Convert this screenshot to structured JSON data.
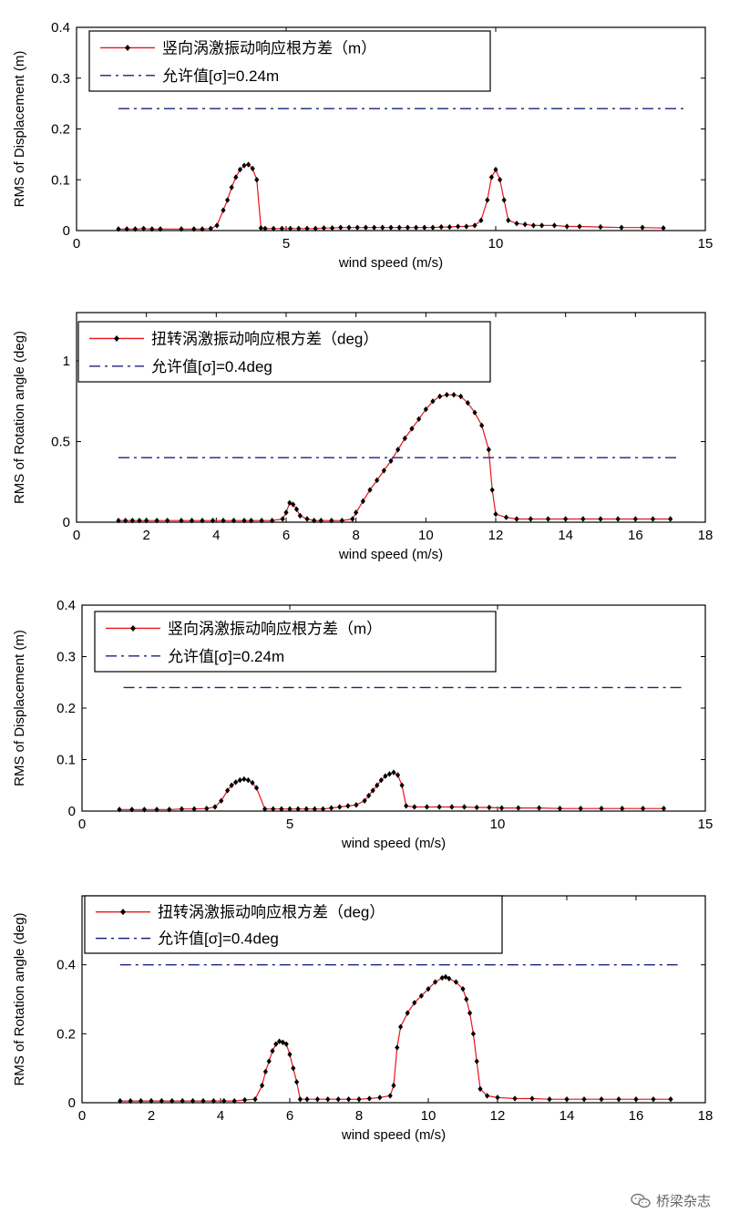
{
  "chart_data": [
    {
      "type": "line",
      "xlabel": "wind speed (m/s)",
      "ylabel": "RMS of Displacement (m)",
      "xlim": [
        0,
        15
      ],
      "ylim": [
        0,
        0.4
      ],
      "xticks": [
        "0",
        "5",
        "10",
        "15"
      ],
      "yticks": [
        "0",
        "0.1",
        "0.2",
        "0.3",
        "0.4"
      ],
      "legend": {
        "position": "top-left",
        "entries": [
          "竖向涡激振动响应根方差（m）",
          "允许值[σ]=0.24m"
        ]
      },
      "series": [
        {
          "name": "竖向涡激振动响应根方差（m）",
          "color": "#e8141c",
          "marker": "diamond",
          "x": [
            1.0,
            1.2,
            1.4,
            1.6,
            1.8,
            2.0,
            2.5,
            2.8,
            3.0,
            3.2,
            3.35,
            3.5,
            3.6,
            3.7,
            3.8,
            3.9,
            4.0,
            4.1,
            4.2,
            4.3,
            4.4,
            4.5,
            4.7,
            4.9,
            5.1,
            5.3,
            5.5,
            5.7,
            5.9,
            6.1,
            6.3,
            6.5,
            6.7,
            6.9,
            7.1,
            7.3,
            7.5,
            7.7,
            7.9,
            8.1,
            8.3,
            8.5,
            8.7,
            8.9,
            9.1,
            9.3,
            9.5,
            9.65,
            9.8,
            9.9,
            10.0,
            10.1,
            10.2,
            10.3,
            10.5,
            10.7,
            10.9,
            11.1,
            11.4,
            11.7,
            12.0,
            12.5,
            13.0,
            13.5,
            14.0
          ],
          "y": [
            0.003,
            0.003,
            0.003,
            0.004,
            0.003,
            0.003,
            0.003,
            0.003,
            0.003,
            0.004,
            0.01,
            0.04,
            0.06,
            0.085,
            0.105,
            0.12,
            0.128,
            0.13,
            0.122,
            0.1,
            0.005,
            0.004,
            0.004,
            0.004,
            0.004,
            0.004,
            0.004,
            0.004,
            0.005,
            0.005,
            0.006,
            0.006,
            0.006,
            0.006,
            0.006,
            0.006,
            0.006,
            0.006,
            0.006,
            0.006,
            0.006,
            0.006,
            0.007,
            0.007,
            0.008,
            0.008,
            0.01,
            0.02,
            0.06,
            0.105,
            0.12,
            0.1,
            0.06,
            0.02,
            0.014,
            0.012,
            0.01,
            0.01,
            0.01,
            0.008,
            0.008,
            0.007,
            0.006,
            0.006,
            0.005
          ]
        },
        {
          "name": "允许值[σ]=0.24m",
          "color": "#1a237e",
          "dash": "dashdot",
          "x": [
            1,
            14.5
          ],
          "y": [
            0.24,
            0.24
          ]
        }
      ]
    },
    {
      "type": "line",
      "xlabel": "wind speed (m/s)",
      "ylabel": "RMS of Rotation angle (deg)",
      "xlim": [
        0,
        18
      ],
      "ylim": [
        0,
        1.3
      ],
      "xticks": [
        "0",
        "2",
        "4",
        "6",
        "8",
        "10",
        "12",
        "14",
        "16",
        "18"
      ],
      "yticks": [
        "0",
        "0.5",
        "1"
      ],
      "legend": {
        "position": "top-left",
        "entries": [
          "扭转涡激振动响应根方差（deg）",
          "允许值[σ]=0.4deg"
        ]
      },
      "series": [
        {
          "name": "扭转涡激振动响应根方差（deg）",
          "color": "#e8141c",
          "marker": "diamond",
          "x": [
            1.2,
            1.4,
            1.6,
            1.8,
            2.0,
            2.3,
            2.6,
            3.0,
            3.3,
            3.6,
            3.9,
            4.2,
            4.5,
            4.8,
            5.0,
            5.3,
            5.6,
            5.9,
            6.0,
            6.1,
            6.2,
            6.3,
            6.4,
            6.6,
            6.8,
            7.0,
            7.3,
            7.6,
            7.9,
            8.0,
            8.2,
            8.4,
            8.6,
            8.8,
            9.0,
            9.2,
            9.4,
            9.6,
            9.8,
            10.0,
            10.2,
            10.4,
            10.6,
            10.8,
            11.0,
            11.2,
            11.4,
            11.6,
            11.8,
            11.9,
            12.0,
            12.3,
            12.6,
            13.0,
            13.5,
            14.0,
            14.5,
            15.0,
            15.5,
            16.0,
            16.5,
            17.0
          ],
          "y": [
            0.01,
            0.01,
            0.01,
            0.01,
            0.01,
            0.01,
            0.01,
            0.01,
            0.01,
            0.01,
            0.01,
            0.01,
            0.01,
            0.01,
            0.01,
            0.01,
            0.01,
            0.02,
            0.06,
            0.12,
            0.11,
            0.08,
            0.04,
            0.02,
            0.01,
            0.01,
            0.01,
            0.01,
            0.02,
            0.06,
            0.13,
            0.2,
            0.26,
            0.32,
            0.38,
            0.45,
            0.52,
            0.58,
            0.64,
            0.7,
            0.75,
            0.78,
            0.79,
            0.79,
            0.78,
            0.74,
            0.68,
            0.6,
            0.45,
            0.2,
            0.05,
            0.03,
            0.02,
            0.02,
            0.02,
            0.02,
            0.02,
            0.02,
            0.02,
            0.02,
            0.02,
            0.02
          ]
        },
        {
          "name": "允许值[σ]=0.4deg",
          "color": "#1a237e",
          "dash": "dashdot",
          "x": [
            1.2,
            17.2
          ],
          "y": [
            0.4,
            0.4
          ]
        }
      ]
    },
    {
      "type": "line",
      "xlabel": "wind speed (m/s)",
      "ylabel": "RMS of Displacement (m)",
      "xlim": [
        0,
        15
      ],
      "ylim": [
        0,
        0.4
      ],
      "xticks": [
        "0",
        "5",
        "10",
        "15"
      ],
      "yticks": [
        "0",
        "0.1",
        "0.2",
        "0.3",
        "0.4"
      ],
      "legend": {
        "position": "top-left",
        "entries": [
          "竖向涡激振动响应根方差（m）",
          "允许值[σ]=0.24m"
        ]
      },
      "series": [
        {
          "name": "竖向涡激振动响应根方差（m）",
          "color": "#e8141c",
          "marker": "diamond",
          "x": [
            0.9,
            1.2,
            1.5,
            1.8,
            2.1,
            2.4,
            2.7,
            3.0,
            3.2,
            3.35,
            3.5,
            3.6,
            3.7,
            3.8,
            3.9,
            4.0,
            4.1,
            4.2,
            4.4,
            4.6,
            4.8,
            5.0,
            5.2,
            5.4,
            5.6,
            5.8,
            6.0,
            6.2,
            6.4,
            6.6,
            6.8,
            6.9,
            7.0,
            7.1,
            7.2,
            7.3,
            7.4,
            7.5,
            7.6,
            7.7,
            7.8,
            8.0,
            8.3,
            8.6,
            8.9,
            9.2,
            9.5,
            9.8,
            10.1,
            10.5,
            11.0,
            11.5,
            12.0,
            12.5,
            13.0,
            13.5,
            14.0
          ],
          "y": [
            0.003,
            0.003,
            0.003,
            0.003,
            0.003,
            0.004,
            0.004,
            0.005,
            0.008,
            0.02,
            0.04,
            0.05,
            0.056,
            0.06,
            0.062,
            0.06,
            0.055,
            0.045,
            0.004,
            0.004,
            0.004,
            0.004,
            0.004,
            0.004,
            0.004,
            0.004,
            0.006,
            0.008,
            0.01,
            0.012,
            0.02,
            0.03,
            0.04,
            0.05,
            0.06,
            0.068,
            0.072,
            0.075,
            0.07,
            0.05,
            0.01,
            0.008,
            0.008,
            0.008,
            0.008,
            0.008,
            0.007,
            0.007,
            0.006,
            0.006,
            0.006,
            0.005,
            0.005,
            0.005,
            0.005,
            0.005,
            0.005
          ]
        },
        {
          "name": "允许值[σ]=0.24m",
          "color": "#1a237e",
          "dash": "dashdot",
          "x": [
            1,
            14.5
          ],
          "y": [
            0.24,
            0.24
          ]
        }
      ]
    },
    {
      "type": "line",
      "xlabel": "wind speed (m/s)",
      "ylabel": "RMS of Rotation angle (deg)",
      "xlim": [
        0,
        18
      ],
      "ylim": [
        0,
        0.6
      ],
      "xticks": [
        "0",
        "2",
        "4",
        "6",
        "8",
        "10",
        "12",
        "14",
        "16",
        "18"
      ],
      "yticks": [
        "0",
        "0.2",
        "0.4"
      ],
      "legend": {
        "position": "top-left",
        "entries": [
          "扭转涡激振动响应根方差（deg）",
          "允许值[σ]=0.4deg"
        ]
      },
      "series": [
        {
          "name": "扭转涡激振动响应根方差（deg）",
          "color": "#e8141c",
          "marker": "diamond",
          "x": [
            1.1,
            1.4,
            1.7,
            2.0,
            2.3,
            2.6,
            2.9,
            3.2,
            3.5,
            3.8,
            4.1,
            4.4,
            4.7,
            5.0,
            5.2,
            5.3,
            5.4,
            5.5,
            5.6,
            5.7,
            5.8,
            5.9,
            6.0,
            6.1,
            6.2,
            6.3,
            6.5,
            6.8,
            7.1,
            7.4,
            7.7,
            8.0,
            8.3,
            8.6,
            8.9,
            9.0,
            9.1,
            9.2,
            9.4,
            9.6,
            9.8,
            10.0,
            10.2,
            10.4,
            10.5,
            10.6,
            10.8,
            11.0,
            11.1,
            11.2,
            11.3,
            11.4,
            11.5,
            11.7,
            12.0,
            12.5,
            13.0,
            13.5,
            14.0,
            14.5,
            15.0,
            15.5,
            16.0,
            16.5,
            17.0
          ],
          "y": [
            0.005,
            0.005,
            0.005,
            0.005,
            0.005,
            0.005,
            0.005,
            0.005,
            0.005,
            0.005,
            0.005,
            0.005,
            0.008,
            0.01,
            0.05,
            0.09,
            0.12,
            0.15,
            0.17,
            0.178,
            0.175,
            0.17,
            0.14,
            0.1,
            0.06,
            0.01,
            0.01,
            0.01,
            0.01,
            0.01,
            0.01,
            0.01,
            0.012,
            0.015,
            0.02,
            0.05,
            0.16,
            0.22,
            0.26,
            0.29,
            0.31,
            0.33,
            0.35,
            0.362,
            0.365,
            0.36,
            0.35,
            0.33,
            0.3,
            0.26,
            0.2,
            0.12,
            0.04,
            0.02,
            0.015,
            0.012,
            0.012,
            0.01,
            0.01,
            0.01,
            0.01,
            0.01,
            0.01,
            0.01,
            0.01
          ]
        },
        {
          "name": "允许值[σ]=0.4deg",
          "color": "#1a237e",
          "dash": "dashdot",
          "x": [
            1.1,
            17.2
          ],
          "y": [
            0.4,
            0.4
          ]
        }
      ]
    }
  ],
  "watermark": {
    "text": "桥梁杂志",
    "icon": "wechat-icon"
  }
}
